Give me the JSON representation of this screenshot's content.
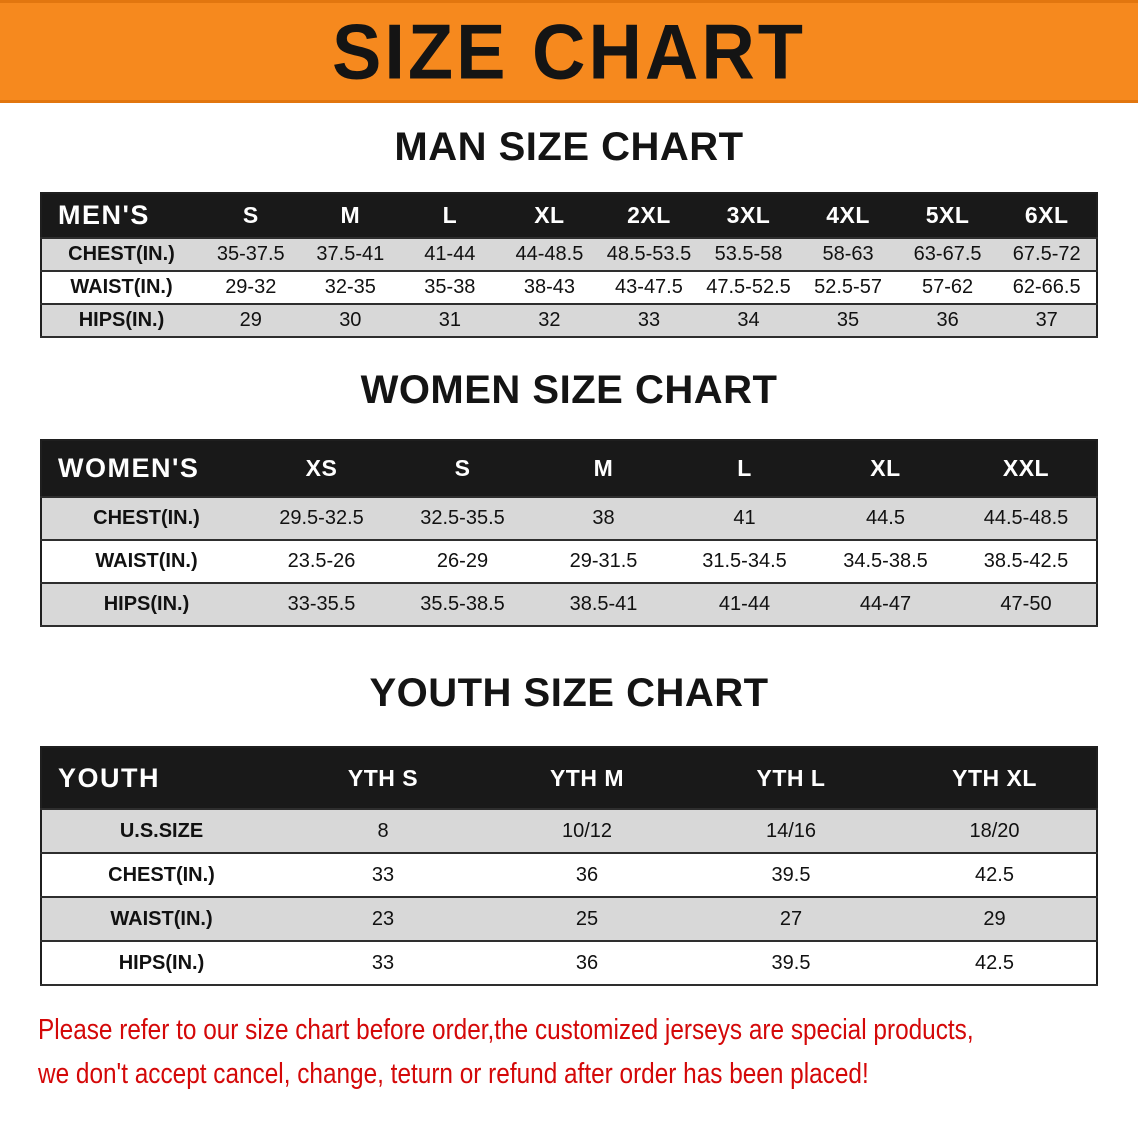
{
  "banner": {
    "title": "SIZE CHART"
  },
  "colors": {
    "banner_orange": "#F6891E",
    "table_header_black": "#191919",
    "row_grey": "#d8d8d8",
    "disclaimer_red": "#d40808"
  },
  "sections": [
    {
      "heading": "MAN SIZE CHART",
      "table": {
        "header": [
          "MEN'S",
          "S",
          "M",
          "L",
          "XL",
          "2XL",
          "3XL",
          "4XL",
          "5XL",
          "6XL"
        ],
        "rows": [
          [
            "CHEST(IN.)",
            "35-37.5",
            "37.5-41",
            "41-44",
            "44-48.5",
            "48.5-53.5",
            "53.5-58",
            "58-63",
            "63-67.5",
            "67.5-72"
          ],
          [
            "WAIST(IN.)",
            "29-32",
            "32-35",
            "35-38",
            "38-43",
            "43-47.5",
            "47.5-52.5",
            "52.5-57",
            "57-62",
            "62-66.5"
          ],
          [
            "HIPS(IN.)",
            "29",
            "30",
            "31",
            "32",
            "33",
            "34",
            "35",
            "36",
            "37"
          ]
        ]
      }
    },
    {
      "heading": "WOMEN SIZE CHART",
      "table": {
        "header": [
          "WOMEN'S",
          "XS",
          "S",
          "M",
          "L",
          "XL",
          "XXL"
        ],
        "rows": [
          [
            "CHEST(IN.)",
            "29.5-32.5",
            "32.5-35.5",
            "38",
            "41",
            "44.5",
            "44.5-48.5"
          ],
          [
            "WAIST(IN.)",
            "23.5-26",
            "26-29",
            "29-31.5",
            "31.5-34.5",
            "34.5-38.5",
            "38.5-42.5"
          ],
          [
            "HIPS(IN.)",
            "33-35.5",
            "35.5-38.5",
            "38.5-41",
            "41-44",
            "44-47",
            "47-50"
          ]
        ]
      }
    },
    {
      "heading": "YOUTH SIZE CHART",
      "table": {
        "header": [
          "YOUTH",
          "YTH S",
          "YTH M",
          "YTH L",
          "YTH XL"
        ],
        "rows": [
          [
            "U.S.SIZE",
            "8",
            "10/12",
            "14/16",
            "18/20"
          ],
          [
            "CHEST(IN.)",
            "33",
            "36",
            "39.5",
            "42.5"
          ],
          [
            "WAIST(IN.)",
            "23",
            "25",
            "27",
            "29"
          ],
          [
            "HIPS(IN.)",
            "33",
            "36",
            "39.5",
            "42.5"
          ]
        ]
      }
    }
  ],
  "footer": {
    "line1": "Please refer to our size chart before order,the customized jerseys are special products,",
    "line2": "we don't accept cancel, change, teturn or refund after order has been placed!"
  }
}
